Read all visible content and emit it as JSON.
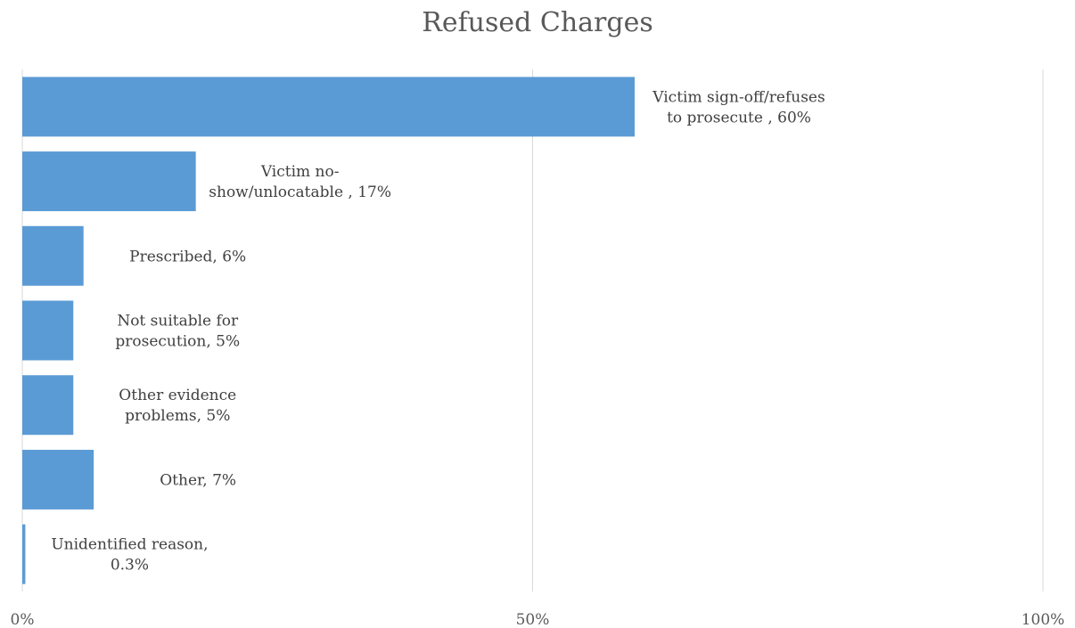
{
  "chart_data": {
    "type": "bar",
    "orientation": "horizontal",
    "title": "Refused Charges",
    "xlim": [
      0,
      100
    ],
    "ticks": [
      "0%",
      "50%",
      "100%"
    ],
    "tick_values": [
      0,
      50,
      100
    ],
    "grid": "vertical",
    "bar_color": "#5B9BD5",
    "categories": [
      "Victim sign-off/refuses to prosecute",
      "Victim no-show/unlocatable",
      "Prescribed",
      "Not suitable for prosecution",
      "Other evidence problems",
      "Other",
      "Unidentified reason"
    ],
    "values": [
      60,
      17,
      6,
      5,
      5,
      7,
      0.3
    ],
    "data_labels": [
      [
        "Victim sign-off/refuses",
        "to prosecute , 60%"
      ],
      [
        "Victim no-",
        "show/unlocatable , 17%"
      ],
      [
        "Prescribed, 6%"
      ],
      [
        "Not suitable for",
        "prosecution, 5%"
      ],
      [
        "Other evidence",
        "problems, 5%"
      ],
      [
        "Other, 7%"
      ],
      [
        "Unidentified reason,",
        "0.3%"
      ]
    ]
  }
}
